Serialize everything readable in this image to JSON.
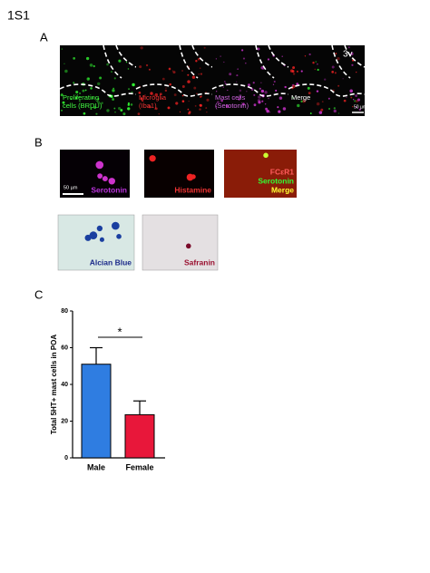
{
  "figure_label": "1S1",
  "panel_a": {
    "label": "A",
    "images": [
      {
        "caption_lines": [
          "Proliferating",
          "cells (BRDU)"
        ]
      },
      {
        "caption_lines": [
          "Microglia",
          "(Iba1)"
        ]
      },
      {
        "caption_lines": [
          "Mast cells",
          "(Serotonin)"
        ]
      },
      {
        "caption_lines": [
          "Merge"
        ]
      }
    ],
    "region_label": "3v",
    "scale_bar": "50 µm"
  },
  "panel_b": {
    "label": "B",
    "scale_bar": "50 µm",
    "images": [
      {
        "caption_lines": [
          "Serotonin"
        ]
      },
      {
        "caption_lines": [
          "Histamine"
        ]
      },
      {
        "caption_lines": [
          "FCεR1",
          "Serotonin",
          "Merge"
        ]
      },
      {
        "caption_lines": [
          "Alcian Blue"
        ]
      },
      {
        "caption_lines": [
          "Safranin"
        ]
      }
    ]
  },
  "panel_c": {
    "label": "C"
  },
  "chart_data": {
    "type": "bar",
    "categories": [
      "Male",
      "Female"
    ],
    "values": [
      51,
      23.5
    ],
    "errors": [
      9,
      7.5
    ],
    "colors": [
      "#2f7de1",
      "#e8173a"
    ],
    "ylabel": "Total 5HT+ mast cells in POA",
    "ylim": [
      0,
      80
    ],
    "yticks": [
      0,
      20,
      40,
      60,
      80
    ],
    "significance": "*"
  }
}
